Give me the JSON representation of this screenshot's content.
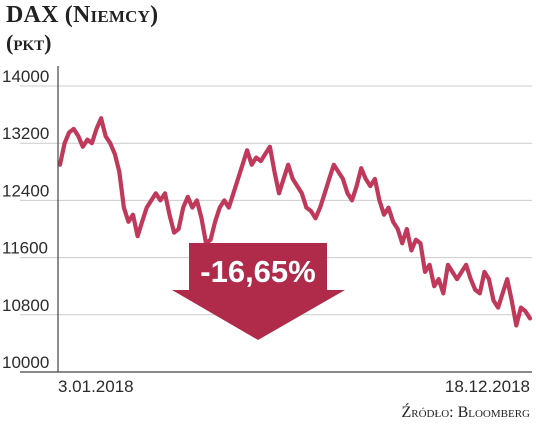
{
  "header": {
    "title": "DAX (Niemcy)",
    "subtitle": "(pkt)"
  },
  "callout": {
    "text": "-16,65%",
    "color": "#b02a4a"
  },
  "source": "Źródło: Bloomberg",
  "colors": {
    "line": "#c0395a",
    "grid": "#cccccc",
    "axis": "#444444"
  },
  "chart_data": {
    "type": "line",
    "title": "DAX (Niemcy)",
    "ylabel": "(pkt)",
    "xlabel": "",
    "ylim": [
      10000,
      14000
    ],
    "yticks": [
      "14000",
      "13200",
      "12400",
      "11600",
      "10800",
      "10000"
    ],
    "x_tick_labels": [
      "3.01.2018",
      "18.12.2018"
    ],
    "x_range": [
      "2018-01-03",
      "2018-12-18"
    ],
    "grid": "horizontal",
    "series": [
      {
        "values": [
          12900,
          13200,
          13350,
          13400,
          13300,
          13150,
          13250,
          13200,
          13400,
          13550,
          13300,
          13200,
          13050,
          12800,
          12300,
          12100,
          12200,
          11900,
          12100,
          12300,
          12400,
          12500,
          12400,
          12500,
          12200,
          11950,
          12000,
          12300,
          12450,
          12300,
          12400,
          12150,
          11800,
          11850,
          12100,
          12300,
          12400,
          12300,
          12500,
          12700,
          12900,
          13100,
          12900,
          13000,
          12950,
          13050,
          13150,
          12800,
          12500,
          12700,
          12900,
          12700,
          12600,
          12500,
          12300,
          12250,
          12150,
          12300,
          12500,
          12700,
          12900,
          12800,
          12700,
          12500,
          12400,
          12600,
          12850,
          12700,
          12600,
          12700,
          12400,
          12200,
          12300,
          12100,
          12000,
          11800,
          12000,
          11700,
          11850,
          11800,
          11400,
          11500,
          11200,
          11300,
          11100,
          11500,
          11400,
          11300,
          11400,
          11500,
          11300,
          11150,
          11100,
          11400,
          11300,
          11000,
          10900,
          11100,
          11300,
          11000,
          10650,
          10900,
          10850,
          10750
        ]
      }
    ]
  }
}
